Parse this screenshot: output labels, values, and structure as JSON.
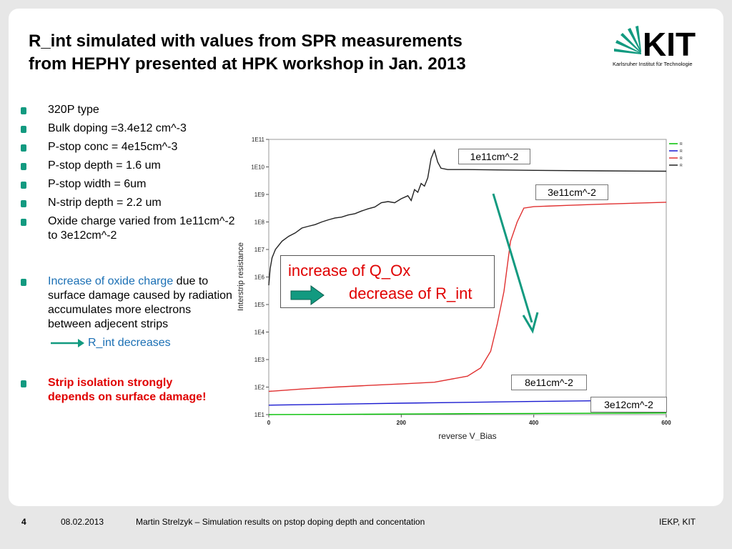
{
  "title": {
    "line1": "R_int simulated with values from SPR measurements",
    "line2": "from HEPHY presented at HPK workshop in Jan. 2013"
  },
  "logo": {
    "text": "KIT",
    "subtitle": "Karlsruher Institut für Technologie",
    "color": "#129a80"
  },
  "bullets": [
    "320P type",
    "Bulk doping   =3.4e12 cm^-3",
    "P-stop conc  = 4e15cm^-3",
    "P-stop depth = 1.6 um",
    "P-stop width  = 6um",
    "N-strip depth = 2.2 um",
    "Oxide charge varied from 1e11cm^-2 to 3e12cm^-2"
  ],
  "note": {
    "highlight": "Increase of oxide charge",
    "rest": "due to surface damage caused by radiation accumulates more electrons between adjecent strips",
    "result": "R_int decreases"
  },
  "conclusion": "Strip isolation strongly depends on surface damage!",
  "callouts": {
    "c1": "1e11cm^-2",
    "c3": "3e11cm^-2",
    "c8": "8e11cm^-2",
    "c3e12": "3e12cm^-2"
  },
  "box": {
    "line1": "increase of Q_Ox",
    "line2": "decrease of R_int"
  },
  "chart_data": {
    "type": "line",
    "xlabel": "reverse V_Bias",
    "ylabel": "Interstrip resistance",
    "xlim": [
      0,
      600
    ],
    "ylim_log10": [
      1,
      11
    ],
    "x_ticks": [
      0,
      200,
      400,
      600
    ],
    "y_ticks": [
      "1E1",
      "1E2",
      "1E3",
      "1E4",
      "1E5",
      "1E6",
      "1E7",
      "1E8",
      "1E9",
      "1E10",
      "1E11"
    ],
    "legend_position": "top-right",
    "series": [
      {
        "name": "Rint_1.6_2.2_3e12",
        "color": "#00c000",
        "x": [
          0,
          100,
          200,
          300,
          400,
          500,
          600
        ],
        "y": [
          10.0,
          10.2,
          10.5,
          10.8,
          11.0,
          11.2,
          11.5
        ]
      },
      {
        "name": "Rint_1.6_2.2_8e11",
        "color": "#1a1ad0",
        "x": [
          0,
          100,
          200,
          300,
          400,
          500,
          600
        ],
        "y": [
          22.0,
          24.0,
          26.0,
          28.0,
          30.0,
          32.0,
          34.0
        ]
      },
      {
        "name": "Rint_1.6_2.2_4e11",
        "color": "#e03030",
        "x": [
          0,
          50,
          100,
          150,
          200,
          250,
          300,
          320,
          335,
          345,
          355,
          365,
          375,
          385,
          400,
          450,
          500,
          550,
          600
        ],
        "y": [
          70.0,
          85.0,
          100.0,
          115.0,
          130.0,
          150.0,
          250.0,
          500.0,
          2000.0,
          20000.0,
          300000.0,
          20000000.0,
          100000000.0,
          320000000.0,
          360000000.0,
          400000000.0,
          440000000.0,
          480000000.0,
          520000000.0
        ]
      },
      {
        "name": "Rint_1.6_2.2_1e11",
        "color": "#222222",
        "x": [
          0,
          2,
          5,
          10,
          20,
          30,
          40,
          50,
          60,
          70,
          80,
          90,
          100,
          110,
          120,
          130,
          140,
          150,
          160,
          170,
          180,
          190,
          200,
          210,
          215,
          220,
          225,
          230,
          235,
          240,
          245,
          250,
          255,
          260,
          270,
          300,
          400,
          500,
          600
        ],
        "y": [
          500000.0,
          2000000.0,
          5000000.0,
          10000000.0,
          20000000.0,
          30000000.0,
          40000000.0,
          60000000.0,
          70000000.0,
          80000000.0,
          100000000.0,
          120000000.0,
          140000000.0,
          150000000.0,
          180000000.0,
          200000000.0,
          250000000.0,
          300000000.0,
          350000000.0,
          500000000.0,
          550000000.0,
          500000000.0,
          700000000.0,
          900000000.0,
          600000000.0,
          1500000000.0,
          1200000000.0,
          2500000000.0,
          2000000000.0,
          4000000000.0,
          20000000000.0,
          40000000000.0,
          15000000000.0,
          9000000000.0,
          8000000000.0,
          8000000000.0,
          7500000000.0,
          7200000000.0,
          7000000000.0
        ]
      }
    ]
  },
  "footer": {
    "page": "4",
    "date": "08.02.2013",
    "text": "Martin Strelzyk – Simulation results on pstop doping depth and concentation",
    "org": "IEKP, KIT"
  }
}
